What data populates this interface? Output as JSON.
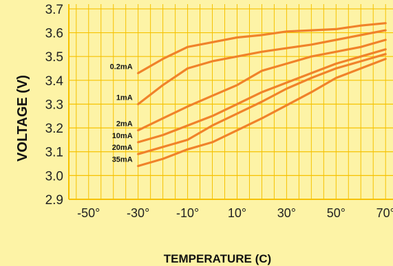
{
  "chart_data": {
    "type": "line",
    "title": "",
    "xlabel": "TEMPERATURE (C)",
    "ylabel": "VOLTAGE (V)",
    "x_ticks": [
      -50,
      -30,
      -10,
      10,
      30,
      50,
      70
    ],
    "x_tick_labels": [
      "-50°",
      "-30°",
      "-10°",
      "10°",
      "30°",
      "50°",
      "70°"
    ],
    "y_ticks": [
      2.9,
      3.0,
      3.1,
      3.2,
      3.3,
      3.4,
      3.5,
      3.6,
      3.7
    ],
    "y_tick_labels": [
      "2.9",
      "3.0",
      "3.1",
      "3.2",
      "3.3",
      "3.4",
      "3.5",
      "3.6",
      "3.7"
    ],
    "xlim": [
      -58,
      73
    ],
    "ylim": [
      2.9,
      3.72
    ],
    "grid": true,
    "series": [
      {
        "name": "0.2mA",
        "x": [
          -30,
          -20,
          -10,
          0,
          10,
          20,
          30,
          40,
          50,
          60,
          70
        ],
        "y": [
          3.43,
          3.49,
          3.54,
          3.56,
          3.58,
          3.59,
          3.605,
          3.61,
          3.615,
          3.63,
          3.64
        ]
      },
      {
        "name": "1mA",
        "x": [
          -30,
          -20,
          -10,
          0,
          10,
          20,
          30,
          40,
          50,
          60,
          70
        ],
        "y": [
          3.3,
          3.38,
          3.45,
          3.48,
          3.5,
          3.52,
          3.535,
          3.55,
          3.57,
          3.59,
          3.61
        ]
      },
      {
        "name": "2mA",
        "x": [
          -30,
          -20,
          -10,
          0,
          10,
          20,
          30,
          40,
          50,
          60,
          70
        ],
        "y": [
          3.19,
          3.24,
          3.29,
          3.335,
          3.38,
          3.44,
          3.47,
          3.5,
          3.52,
          3.54,
          3.57
        ]
      },
      {
        "name": "10mA",
        "x": [
          -30,
          -20,
          -10,
          0,
          10,
          20,
          30,
          40,
          50,
          60,
          70
        ],
        "y": [
          3.14,
          3.17,
          3.21,
          3.25,
          3.3,
          3.35,
          3.39,
          3.43,
          3.47,
          3.5,
          3.53
        ]
      },
      {
        "name": "20mA",
        "x": [
          -30,
          -20,
          -10,
          0,
          10,
          20,
          30,
          40,
          50,
          60,
          70
        ],
        "y": [
          3.09,
          3.12,
          3.15,
          3.21,
          3.26,
          3.31,
          3.365,
          3.41,
          3.45,
          3.48,
          3.51
        ]
      },
      {
        "name": "35mA",
        "x": [
          -30,
          -20,
          -10,
          0,
          10,
          20,
          30,
          40,
          50,
          60,
          70
        ],
        "y": [
          3.04,
          3.07,
          3.11,
          3.14,
          3.19,
          3.24,
          3.295,
          3.35,
          3.41,
          3.45,
          3.49
        ]
      }
    ],
    "line_color": "#f0822a",
    "grid_color": "#f6c200",
    "background": "#fdf3a6"
  }
}
